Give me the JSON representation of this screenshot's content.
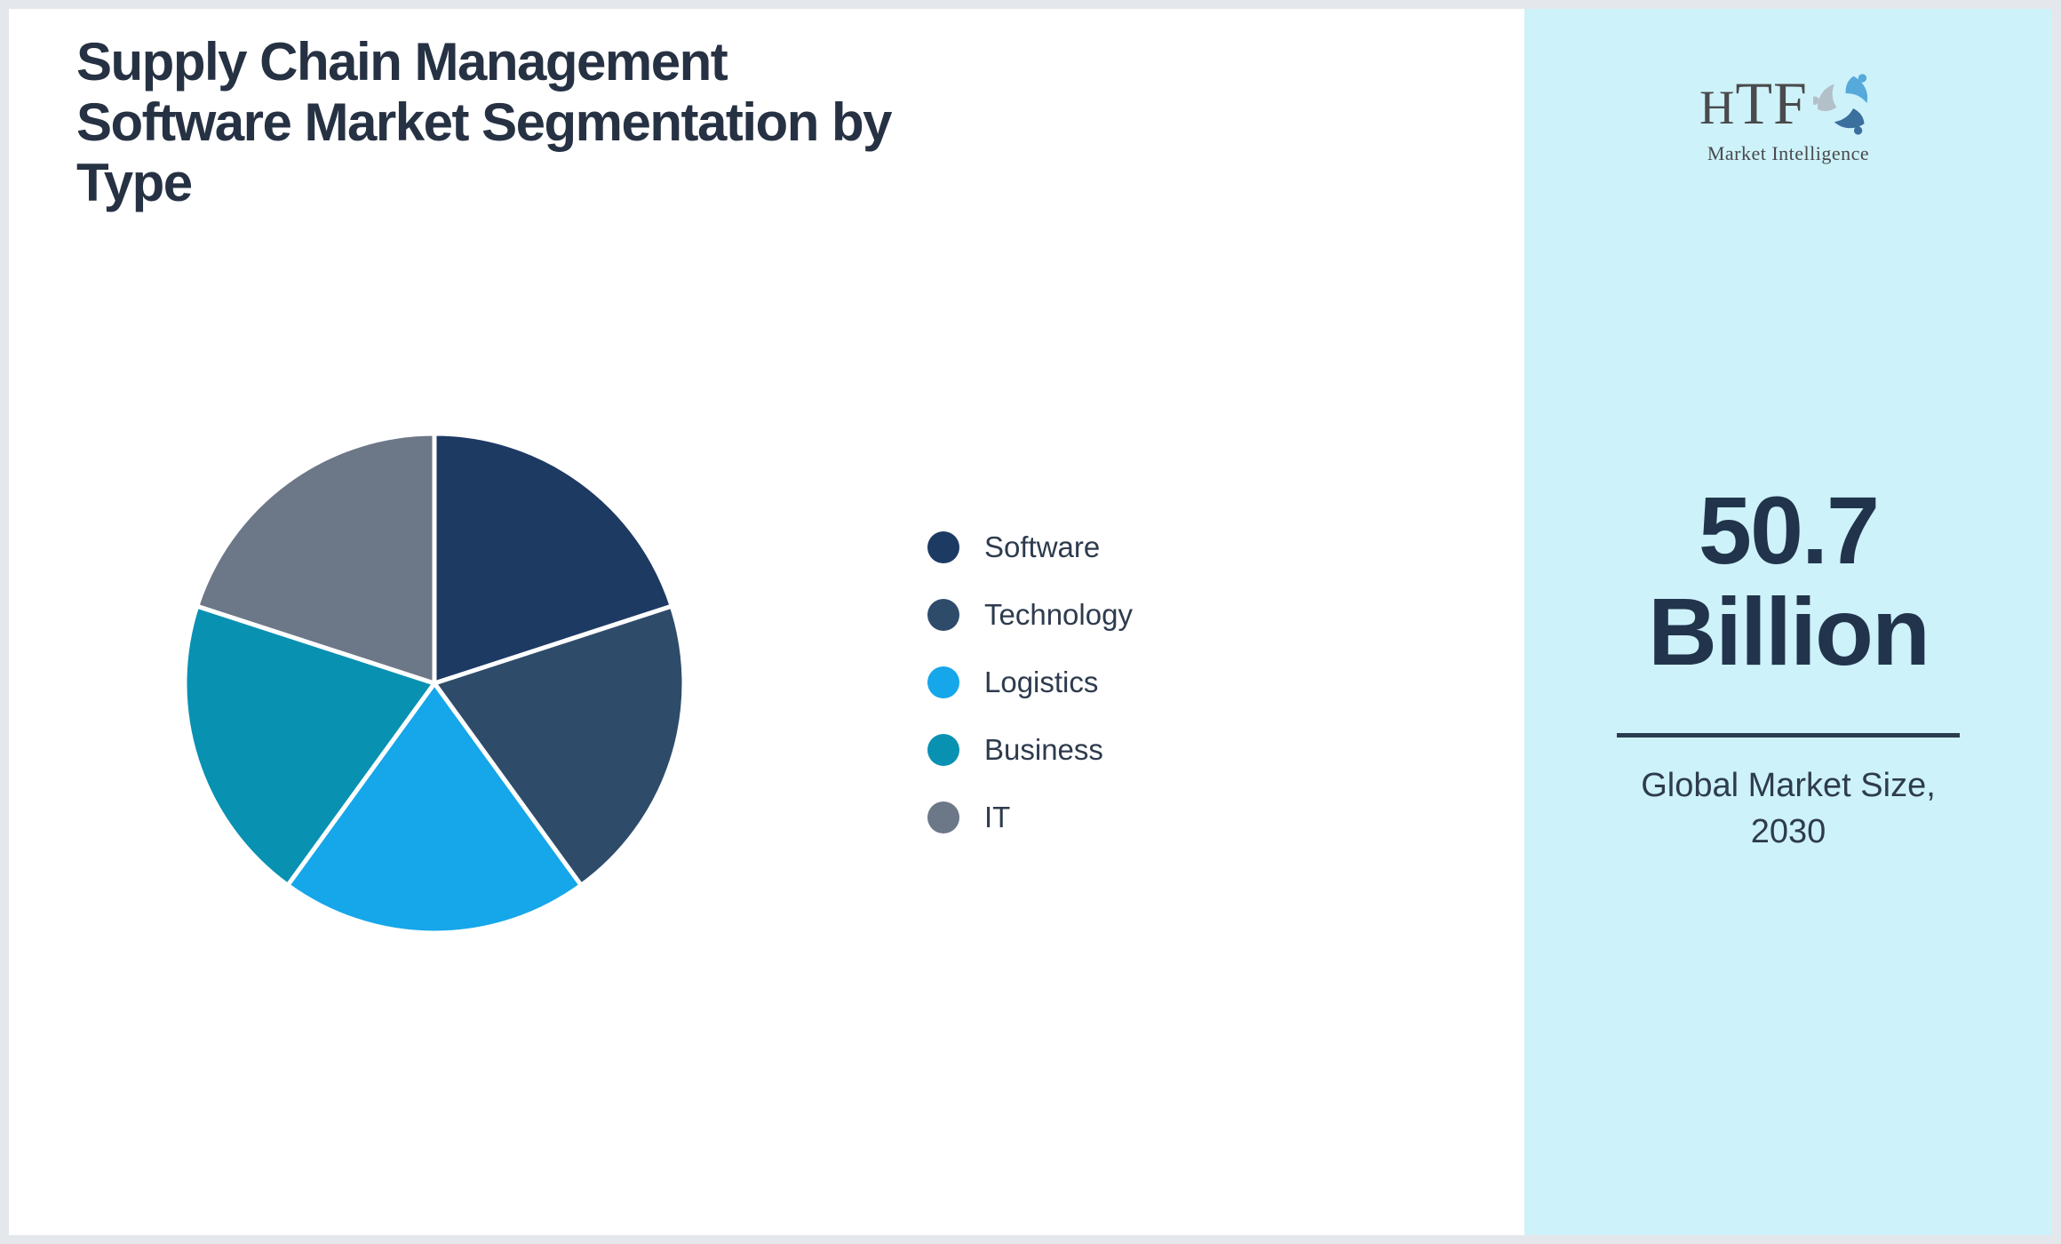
{
  "title": {
    "text": "Supply Chain Management Software Market Segmentation by Type",
    "lines": [
      "Supply Chain Management",
      "Software Market Segmentation by",
      "Type"
    ]
  },
  "brand": {
    "name": "HTF",
    "tagline": "Market Intelligence",
    "logo_icon": "dolphin-swirl",
    "colors": {
      "text": "#4a4a4c",
      "petal_top": "#55a9db",
      "petal_right": "#3a6f9e",
      "petal_left": "#b3bfc9"
    }
  },
  "stat": {
    "value": "50.7",
    "unit": "Billion",
    "caption_lines": [
      "Global Market Size,",
      "2030"
    ]
  },
  "colors": {
    "frame_border": "#e4e7eb",
    "main_bg": "#ffffff",
    "panel_bg": "#cdf2fa",
    "title_text": "#263243",
    "legend_text": "#2e3b4e",
    "stat_text": "#22344c",
    "caption_text": "#2e3b4e",
    "divider": "#2b3c50"
  },
  "chart_data": {
    "type": "pie",
    "title": "Supply Chain Management Software Market Segmentation by Type",
    "labels": [
      "Software",
      "Technology",
      "Logistics",
      "Business",
      "IT"
    ],
    "values": [
      20,
      20,
      20,
      20,
      20
    ],
    "unit": "percent-share",
    "colors": [
      "#1d3a63",
      "#2e4c6a",
      "#16a6ea",
      "#0991b2",
      "#6c7787"
    ],
    "start_angle_deg": 0,
    "direction": "clockwise",
    "slice_border_color": "#ffffff",
    "slice_border_width": 5,
    "legend_position": "right",
    "radius_px": 281
  }
}
